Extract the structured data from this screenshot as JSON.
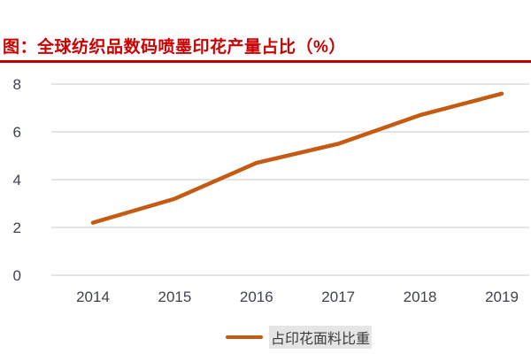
{
  "title": "图：全球纺织品数码喷墨印花产量占比（%）",
  "accent_colors": {
    "title_red": "#CC0000",
    "rule_red": "#C00000",
    "line_orange": "#C55A11",
    "gridline_gray": "#DCDCDC",
    "axis_text": "#3F434E"
  },
  "chart_data": {
    "type": "line",
    "title": "图：全球纺织品数码喷墨印花产量占比（%）",
    "categories": [
      "2014",
      "2015",
      "2016",
      "2017",
      "2018",
      "2019"
    ],
    "series": [
      {
        "name": "占印花面料比重",
        "values": [
          2.2,
          3.2,
          4.7,
          5.5,
          6.7,
          7.6
        ]
      }
    ],
    "xlabel": "",
    "ylabel": "",
    "ylim": [
      0,
      8
    ],
    "yticks": [
      0,
      2,
      4,
      6,
      8
    ],
    "grid": "horizontal-only",
    "legend_position": "bottom-center"
  },
  "legend": {
    "label": "占印花面料比重"
  }
}
